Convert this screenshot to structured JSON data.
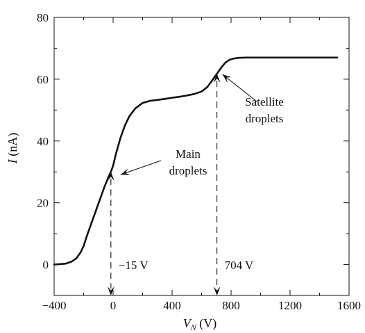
{
  "chart_data": {
    "type": "line",
    "title": "",
    "xlabel_var": "V",
    "xlabel_sub": "N",
    "xlabel_unit": " (V)",
    "ylabel_var": "I",
    "ylabel_unit": " (nA)",
    "xlim": [
      -400,
      1600
    ],
    "ylim": [
      -10,
      80
    ],
    "xticks": [
      -400,
      0,
      400,
      800,
      1200,
      1600
    ],
    "yticks": [
      0,
      20,
      40,
      60,
      80
    ],
    "grid": false,
    "series": [
      {
        "x": [
          -400,
          -320,
          -280,
          -250,
          -220,
          -200,
          -180,
          -150,
          -120,
          -90,
          -60,
          -30,
          -15,
          0,
          20,
          50,
          80,
          110,
          150,
          200,
          250,
          300,
          350,
          400,
          450,
          500,
          550,
          600,
          640,
          670,
          700,
          730,
          760,
          790,
          820,
          850,
          900,
          1000,
          1200,
          1400,
          1520
        ],
        "y": [
          0,
          0.3,
          1,
          2,
          4,
          6,
          9,
          13,
          17,
          21,
          25,
          28.5,
          30,
          32,
          36,
          41,
          45,
          48,
          50.5,
          52.3,
          53,
          53.3,
          53.6,
          54,
          54.3,
          54.7,
          55.2,
          56,
          57.5,
          59.5,
          61.5,
          63.5,
          65.3,
          66.3,
          66.7,
          66.9,
          67,
          67,
          67,
          67,
          67
        ]
      }
    ],
    "annotations": [
      {
        "line1": "Main",
        "line2": "droplets",
        "points_to": [
          -15,
          30
        ]
      },
      {
        "line1": "Satellite",
        "line2": "droplets",
        "points_to": [
          704,
          62
        ]
      }
    ],
    "markers": [
      {
        "x": -15,
        "label": "−15 V"
      },
      {
        "x": 704,
        "label": "704 V"
      }
    ]
  }
}
